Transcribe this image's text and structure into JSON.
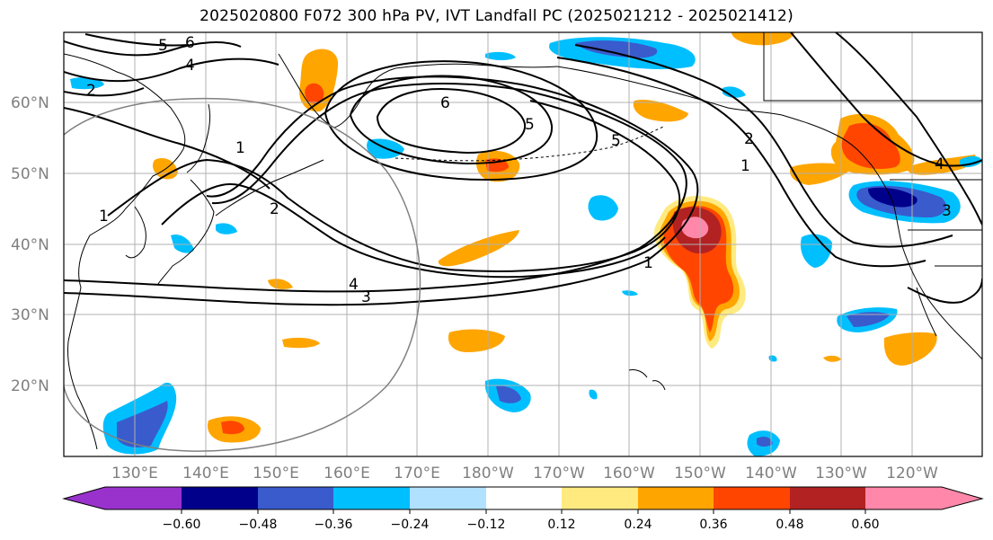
{
  "title": "2025020800 F072 300 hPa PV, IVT Landfall PC (2025021212 - 2025021412)",
  "lat_labels": [
    "60°N",
    "50°N",
    "40°N",
    "30°N",
    "20°N"
  ],
  "lon_labels": [
    "130°E",
    "140°E",
    "150°E",
    "160°E",
    "170°E",
    "180°W",
    "170°W",
    "160°W",
    "150°W",
    "140°W",
    "130°W",
    "120°W"
  ],
  "contour_labels": [
    "6",
    "5",
    "4",
    "2",
    "1",
    "2",
    "1",
    "6",
    "5",
    "5",
    "2",
    "1",
    "4",
    "3",
    "4",
    "3",
    "1"
  ],
  "colorbar": {
    "ticks": [
      "−0.60",
      "−0.48",
      "−0.36",
      "−0.24",
      "−0.12",
      "0.12",
      "0.24",
      "0.36",
      "0.48",
      "0.60"
    ],
    "colors": [
      "#9932cc",
      "#00008b",
      "#3a5bcc",
      "#00bfff",
      "#b0e2ff",
      "#ffffff",
      "#ffea80",
      "#ffa500",
      "#ff4500",
      "#b22222",
      "#ff88aa",
      "#ff88aa"
    ]
  },
  "colors": {
    "grid": "#b0b0b0",
    "coast": "#000000",
    "pv_contour": "#000000",
    "circle": "#808080"
  }
}
